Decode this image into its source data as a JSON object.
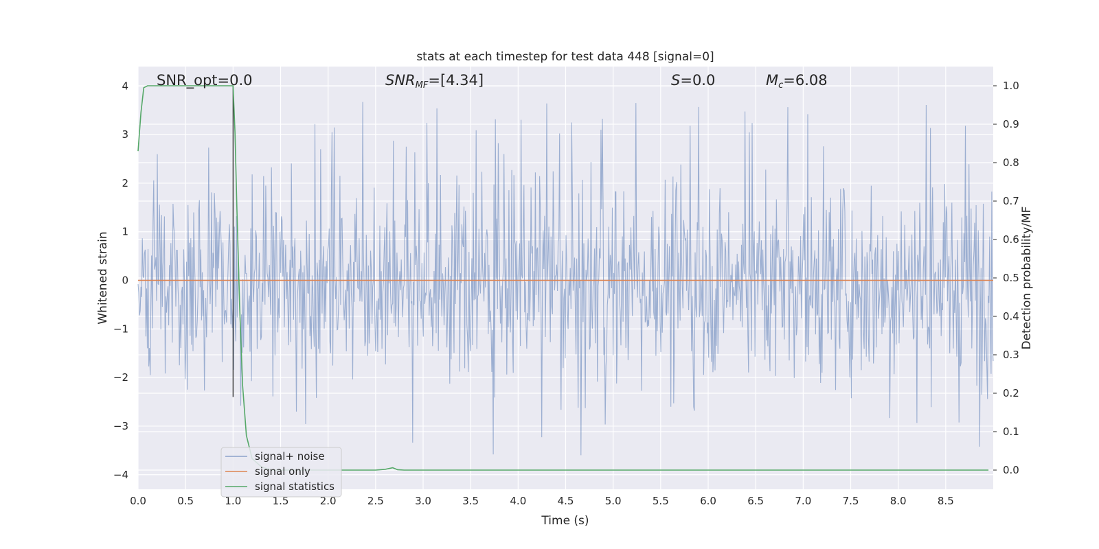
{
  "chart_data": {
    "type": "line",
    "title": "stats at each timestep for test data 448 [signal=0]",
    "xlabel": "Time (s)",
    "ylabel_left": "Whitened strain",
    "ylabel_right": "Detection probability/MF",
    "xlim": [
      0.0,
      9.0
    ],
    "ylim_left": [
      -4.3,
      4.4
    ],
    "ylim_right": [
      -0.05,
      1.05
    ],
    "x_ticks": [
      "0.0",
      "0.5",
      "1.0",
      "1.5",
      "2.0",
      "2.5",
      "3.0",
      "3.5",
      "4.0",
      "4.5",
      "5.0",
      "5.5",
      "6.0",
      "6.5",
      "7.0",
      "7.5",
      "8.0",
      "8.5"
    ],
    "y_ticks_left": [
      "4",
      "3",
      "2",
      "1",
      "0",
      "−1",
      "−2",
      "−3",
      "−4"
    ],
    "y_ticks_right": [
      "1.0",
      "0.9",
      "0.8",
      "0.7",
      "0.6",
      "0.5",
      "0.4",
      "0.3",
      "0.2",
      "0.1",
      "0.0"
    ],
    "grid": true,
    "legend_position": "bottom-left",
    "annotations": {
      "snr_opt": "SNR_opt=0.0",
      "snr_mf_prefix": "SNR",
      "snr_mf_sub": "MF",
      "snr_mf_value": "=[4.34]",
      "s_symbol": "S",
      "s_value": "=0.0",
      "mc_symbol": "M",
      "mc_sub": "c",
      "mc_value": "=6.08"
    },
    "vertical_line_x": 1.0,
    "series": [
      {
        "name": "signal+ noise",
        "axis": "left",
        "color": "#4c72b0",
        "description_values": "whitened noise, roughly within [-3.6, 4.0]",
        "x_range": [
          0.0,
          9.0
        ],
        "n_samples": 1200
      },
      {
        "name": "signal only",
        "axis": "left",
        "color": "#dd8452",
        "x": [
          0.0,
          9.0
        ],
        "y": [
          0.0,
          0.0
        ]
      },
      {
        "name": "signal statistics",
        "axis": "right",
        "color": "#55a868",
        "x": [
          0.0,
          0.03,
          0.06,
          0.1,
          0.2,
          0.5,
          0.95,
          1.0,
          1.02,
          1.04,
          1.07,
          1.1,
          1.14,
          1.2,
          1.3,
          1.4,
          1.6,
          2.0,
          2.5,
          2.6,
          2.68,
          2.73,
          2.8,
          3.0,
          4.0,
          5.0,
          6.0,
          7.0,
          8.0,
          8.95
        ],
        "y": [
          0.83,
          0.93,
          0.995,
          1.0,
          1.0,
          1.0,
          1.0,
          1.0,
          0.88,
          0.68,
          0.42,
          0.22,
          0.09,
          0.03,
          0.008,
          0.0,
          0.0,
          0.0,
          0.0,
          0.002,
          0.006,
          0.001,
          0.0,
          0.0,
          0.0,
          0.0,
          0.0,
          0.0,
          0.0,
          0.0
        ]
      }
    ]
  }
}
